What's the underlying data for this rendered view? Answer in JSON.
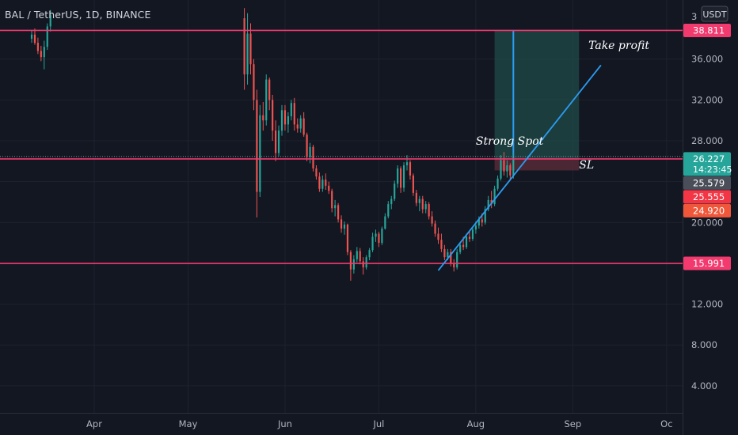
{
  "header": {
    "symbol": "BAL / TetherUS, 1D, BINANCE"
  },
  "currency_button": {
    "label": "USDT"
  },
  "colors": {
    "background": "#131722",
    "up": "#26a69a",
    "down": "#ef5350",
    "level_line": "#f23a6f",
    "trend_line": "#2a9df4",
    "target_zone": "#1f4e4a",
    "stop_zone": "#5a2a38",
    "price_badge": "#26a69a",
    "gray_badge": "#4a4e59",
    "red_badge": "#f23645",
    "orange_badge": "#f0573a"
  },
  "chart_data": {
    "type": "candlestick",
    "title": "BAL / TetherUS, 1D, BINANCE",
    "y_ticks": [
      "4.000",
      "8.000",
      "12.000",
      "16.000",
      "20.000",
      "24.000",
      "28.000",
      "32.000",
      "36.000"
    ],
    "y_partial_top_tick": "3",
    "ylim": [
      0,
      40
    ],
    "x_ticks": [
      {
        "label": "Apr",
        "date": "2021-04-01"
      },
      {
        "label": "May",
        "date": "2021-05-01"
      },
      {
        "label": "Jun",
        "date": "2021-06-01"
      },
      {
        "label": "Jul",
        "date": "2021-07-01"
      },
      {
        "label": "Aug",
        "date": "2021-08-01"
      },
      {
        "label": "Sep",
        "date": "2021-09-01"
      },
      {
        "label": "Oc",
        "date": "2021-10-01"
      }
    ],
    "horizontal_levels": [
      38.811,
      26.227,
      15.991
    ],
    "price_labels": [
      {
        "value": "38.811",
        "price": 38.811,
        "style": "level"
      },
      {
        "value": "26.227",
        "price": 26.227,
        "style": "current",
        "countdown": "14:23:45"
      },
      {
        "value": "25.579",
        "price": 25.579,
        "style": "gray"
      },
      {
        "value": "25.555",
        "price": 25.555,
        "style": "red"
      },
      {
        "value": "24.920",
        "price": 24.92,
        "style": "orange"
      },
      {
        "value": "15.991",
        "price": 15.991,
        "style": "level"
      }
    ],
    "annotations": [
      {
        "text": "Strong Spot",
        "date": "2021-08-01",
        "price": 27.6
      },
      {
        "text": "Take profit",
        "date": "2021-09-06",
        "price": 37.0
      },
      {
        "text": "SL",
        "date": "2021-09-03",
        "price": 25.3
      }
    ],
    "trendline": {
      "start": {
        "date": "2021-07-20",
        "price": 15.3
      },
      "end": {
        "date": "2021-09-10",
        "price": 35.4
      }
    },
    "position": {
      "entry_date": "2021-08-07",
      "exit_date": "2021-09-03",
      "entry": 26.227,
      "target": 38.811,
      "stop": 25.1,
      "marker_date": "2021-08-13"
    },
    "series": [
      {
        "ohlc": [
          [
            "2021-03-12",
            38.0,
            38.8,
            37.6,
            38.4
          ],
          [
            "2021-03-13",
            38.4,
            39.0,
            37.4,
            37.6
          ],
          [
            "2021-03-14",
            37.6,
            38.1,
            36.5,
            36.8
          ],
          [
            "2021-03-15",
            36.8,
            37.3,
            35.8,
            36.2
          ],
          [
            "2021-03-16",
            36.2,
            37.8,
            35.0,
            37.2
          ],
          [
            "2021-03-17",
            37.2,
            39.5,
            36.9,
            39.2
          ],
          [
            "2021-03-18",
            39.2,
            40.8,
            38.7,
            40.3
          ],
          [
            "2021-05-19",
            40.0,
            41.0,
            33.0,
            34.5
          ],
          [
            "2021-05-20",
            34.5,
            40.5,
            33.5,
            38.5
          ],
          [
            "2021-05-21",
            38.5,
            39.5,
            34.5,
            35.5
          ],
          [
            "2021-05-22",
            35.5,
            36.0,
            31.0,
            32.0
          ],
          [
            "2021-05-23",
            32.0,
            33.0,
            20.5,
            23.0
          ],
          [
            "2021-05-24",
            23.0,
            31.5,
            22.5,
            30.5
          ],
          [
            "2021-05-25",
            30.5,
            31.8,
            29.0,
            30.0
          ],
          [
            "2021-05-26",
            30.0,
            34.5,
            29.5,
            34.0
          ],
          [
            "2021-05-27",
            34.0,
            34.2,
            31.0,
            32.0
          ],
          [
            "2021-05-28",
            32.0,
            32.5,
            28.0,
            29.0
          ],
          [
            "2021-05-29",
            29.0,
            30.0,
            26.0,
            26.8
          ],
          [
            "2021-05-30",
            26.8,
            29.5,
            26.5,
            29.0
          ],
          [
            "2021-05-31",
            29.0,
            31.5,
            28.5,
            31.0
          ],
          [
            "2021-06-01",
            31.0,
            31.5,
            29.0,
            29.6
          ],
          [
            "2021-06-02",
            29.6,
            30.8,
            28.8,
            30.4
          ],
          [
            "2021-06-03",
            30.4,
            32.0,
            30.0,
            31.7
          ],
          [
            "2021-06-04",
            31.7,
            32.2,
            29.0,
            29.6
          ],
          [
            "2021-06-05",
            29.6,
            30.2,
            28.8,
            29.2
          ],
          [
            "2021-06-06",
            29.2,
            30.5,
            28.8,
            30.2
          ],
          [
            "2021-06-07",
            30.2,
            30.8,
            28.4,
            28.6
          ],
          [
            "2021-06-08",
            28.6,
            28.8,
            26.0,
            26.4
          ],
          [
            "2021-06-09",
            26.4,
            27.8,
            25.8,
            27.4
          ],
          [
            "2021-06-10",
            27.4,
            27.6,
            25.0,
            25.3
          ],
          [
            "2021-06-11",
            25.3,
            25.6,
            24.2,
            24.5
          ],
          [
            "2021-06-12",
            24.5,
            24.9,
            23.0,
            23.3
          ],
          [
            "2021-06-13",
            23.3,
            24.6,
            23.0,
            24.2
          ],
          [
            "2021-06-14",
            24.2,
            24.8,
            23.2,
            23.6
          ],
          [
            "2021-06-15",
            23.6,
            24.0,
            22.8,
            23.1
          ],
          [
            "2021-06-16",
            23.1,
            23.3,
            21.0,
            21.4
          ],
          [
            "2021-06-17",
            21.4,
            22.2,
            20.6,
            21.7
          ],
          [
            "2021-06-18",
            21.7,
            21.9,
            20.0,
            20.3
          ],
          [
            "2021-06-19",
            20.3,
            20.7,
            19.0,
            19.4
          ],
          [
            "2021-06-20",
            19.4,
            20.1,
            18.8,
            19.8
          ],
          [
            "2021-06-21",
            19.8,
            19.9,
            16.8,
            17.1
          ],
          [
            "2021-06-22",
            17.1,
            17.3,
            14.3,
            15.4
          ],
          [
            "2021-06-23",
            15.4,
            16.8,
            15.0,
            16.4
          ],
          [
            "2021-06-24",
            16.4,
            17.6,
            16.1,
            17.2
          ],
          [
            "2021-06-25",
            17.2,
            17.5,
            15.9,
            16.2
          ],
          [
            "2021-06-26",
            16.2,
            16.6,
            14.9,
            15.6
          ],
          [
            "2021-06-27",
            15.6,
            16.8,
            15.4,
            16.6
          ],
          [
            "2021-06-28",
            16.6,
            17.5,
            16.3,
            17.3
          ],
          [
            "2021-06-29",
            17.3,
            19.0,
            17.1,
            18.6
          ],
          [
            "2021-06-30",
            18.6,
            19.3,
            18.1,
            18.9
          ],
          [
            "2021-07-01",
            18.9,
            19.1,
            17.6,
            18.0
          ],
          [
            "2021-07-02",
            18.0,
            19.6,
            17.8,
            19.4
          ],
          [
            "2021-07-03",
            19.4,
            20.9,
            19.3,
            20.6
          ],
          [
            "2021-07-04",
            20.6,
            22.1,
            20.4,
            21.8
          ],
          [
            "2021-07-05",
            21.8,
            22.6,
            21.3,
            22.3
          ],
          [
            "2021-07-06",
            22.3,
            24.1,
            22.1,
            23.8
          ],
          [
            "2021-07-07",
            23.8,
            25.6,
            23.4,
            25.3
          ],
          [
            "2021-07-08",
            25.3,
            25.5,
            22.9,
            23.4
          ],
          [
            "2021-07-09",
            23.4,
            25.9,
            23.0,
            25.6
          ],
          [
            "2021-07-10",
            25.6,
            26.6,
            25.1,
            25.9
          ],
          [
            "2021-07-11",
            25.9,
            26.1,
            24.2,
            24.6
          ],
          [
            "2021-07-12",
            24.6,
            24.8,
            22.6,
            22.9
          ],
          [
            "2021-07-13",
            22.9,
            23.2,
            21.6,
            21.9
          ],
          [
            "2021-07-14",
            21.9,
            22.6,
            21.1,
            22.3
          ],
          [
            "2021-07-15",
            22.3,
            22.6,
            20.9,
            21.3
          ],
          [
            "2021-07-16",
            21.3,
            22.1,
            20.9,
            21.8
          ],
          [
            "2021-07-17",
            21.8,
            22.0,
            20.3,
            20.6
          ],
          [
            "2021-07-18",
            20.6,
            21.1,
            19.6,
            19.9
          ],
          [
            "2021-07-19",
            19.9,
            20.2,
            18.6,
            18.9
          ],
          [
            "2021-07-20",
            18.9,
            19.5,
            17.9,
            18.3
          ],
          [
            "2021-07-21",
            18.3,
            18.9,
            17.1,
            17.4
          ],
          [
            "2021-07-22",
            17.4,
            17.8,
            16.3,
            16.6
          ],
          [
            "2021-07-23",
            16.6,
            17.4,
            16.3,
            17.1
          ],
          [
            "2021-07-24",
            17.1,
            17.4,
            15.7,
            16.0
          ],
          [
            "2021-07-25",
            16.0,
            16.4,
            15.2,
            15.6
          ],
          [
            "2021-07-26",
            15.6,
            17.4,
            15.4,
            17.1
          ],
          [
            "2021-07-27",
            17.1,
            18.1,
            16.9,
            17.8
          ],
          [
            "2021-07-28",
            17.8,
            18.6,
            17.3,
            17.6
          ],
          [
            "2021-07-29",
            17.6,
            18.9,
            17.4,
            18.6
          ],
          [
            "2021-07-30",
            18.6,
            19.1,
            18.1,
            18.4
          ],
          [
            "2021-07-31",
            18.4,
            19.6,
            18.2,
            19.3
          ],
          [
            "2021-08-01",
            19.3,
            20.1,
            18.9,
            19.7
          ],
          [
            "2021-08-02",
            19.7,
            20.6,
            19.4,
            20.3
          ],
          [
            "2021-08-03",
            20.3,
            20.9,
            19.6,
            20.0
          ],
          [
            "2021-08-04",
            20.0,
            21.6,
            19.8,
            21.3
          ],
          [
            "2021-08-05",
            21.3,
            22.6,
            21.1,
            22.2
          ],
          [
            "2021-08-06",
            22.2,
            23.1,
            21.4,
            21.8
          ],
          [
            "2021-08-07",
            21.8,
            23.6,
            21.6,
            23.3
          ],
          [
            "2021-08-08",
            23.3,
            24.6,
            23.1,
            24.3
          ],
          [
            "2021-08-09",
            24.3,
            26.6,
            24.1,
            26.1
          ],
          [
            "2021-08-10",
            26.1,
            26.9,
            24.6,
            25.0
          ],
          [
            "2021-08-11",
            25.0,
            26.1,
            24.4,
            25.6
          ],
          [
            "2021-08-12",
            25.6,
            25.8,
            24.1,
            24.6
          ],
          [
            "2021-08-13",
            24.6,
            26.8,
            24.3,
            26.2
          ]
        ]
      }
    ]
  }
}
